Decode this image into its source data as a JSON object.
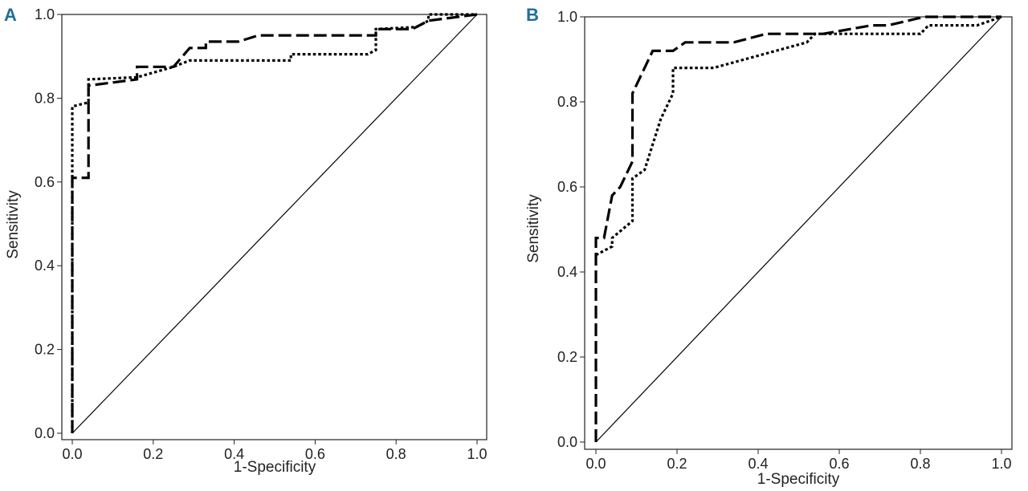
{
  "chart_data": [
    {
      "type": "line",
      "panel_label": "A",
      "xlabel": "1-Specificity",
      "ylabel": "Sensitivity",
      "xlim": [
        0,
        1
      ],
      "ylim": [
        0,
        1
      ],
      "xticks": [
        "0.0",
        "0.2",
        "0.4",
        "0.6",
        "0.8",
        "1.0"
      ],
      "yticks": [
        "0.0",
        "0.2",
        "0.4",
        "0.6",
        "0.8",
        "1.0"
      ],
      "grid": false,
      "series": [
        {
          "name": "dashed",
          "style": "dashed",
          "x": [
            0,
            0,
            0.04,
            0.04,
            0.16,
            0.16,
            0.25,
            0.29,
            0.33,
            0.33,
            0.41,
            0.46,
            0.75,
            0.75,
            0.84,
            0.88,
            1
          ],
          "y": [
            0,
            0.61,
            0.61,
            0.83,
            0.845,
            0.875,
            0.875,
            0.92,
            0.92,
            0.935,
            0.935,
            0.95,
            0.95,
            0.965,
            0.965,
            0.985,
            1
          ]
        },
        {
          "name": "dotted",
          "style": "dotted",
          "x": [
            0,
            0,
            0.04,
            0.04,
            0.16,
            0.25,
            0.29,
            0.54,
            0.54,
            0.73,
            0.75,
            0.75,
            0.85,
            0.88,
            0.88,
            1
          ],
          "y": [
            0,
            0.78,
            0.79,
            0.845,
            0.85,
            0.875,
            0.89,
            0.89,
            0.905,
            0.905,
            0.915,
            0.965,
            0.97,
            0.985,
            1,
            1
          ]
        },
        {
          "name": "reference",
          "style": "solid",
          "x": [
            0,
            1
          ],
          "y": [
            0,
            1
          ]
        }
      ]
    },
    {
      "type": "line",
      "panel_label": "B",
      "xlabel": "1-Specificity",
      "ylabel": "Sensitivity",
      "xlim": [
        0,
        1
      ],
      "ylim": [
        0,
        1
      ],
      "xticks": [
        "0.0",
        "0.2",
        "0.4",
        "0.6",
        "0.8",
        "1.0"
      ],
      "yticks": [
        "0.0",
        "0.2",
        "0.4",
        "0.6",
        "0.8",
        "1.0"
      ],
      "grid": false,
      "series": [
        {
          "name": "dashed",
          "style": "dashed",
          "x": [
            0,
            0,
            0.02,
            0.04,
            0.06,
            0.09,
            0.09,
            0.14,
            0.19,
            0.22,
            0.34,
            0.42,
            0.56,
            0.68,
            0.72,
            0.81,
            1
          ],
          "y": [
            0,
            0.48,
            0.48,
            0.58,
            0.6,
            0.66,
            0.82,
            0.92,
            0.92,
            0.94,
            0.94,
            0.96,
            0.96,
            0.98,
            0.98,
            1,
            1
          ]
        },
        {
          "name": "dotted",
          "style": "dotted",
          "x": [
            0,
            0.04,
            0.04,
            0.09,
            0.09,
            0.12,
            0.16,
            0.19,
            0.19,
            0.29,
            0.52,
            0.54,
            0.8,
            0.82,
            0.94,
            1
          ],
          "y": [
            0.44,
            0.46,
            0.48,
            0.52,
            0.62,
            0.64,
            0.76,
            0.82,
            0.88,
            0.88,
            0.94,
            0.96,
            0.96,
            0.98,
            0.98,
            1
          ]
        },
        {
          "name": "reference",
          "style": "solid",
          "x": [
            0,
            1
          ],
          "y": [
            0,
            1
          ]
        }
      ]
    }
  ]
}
